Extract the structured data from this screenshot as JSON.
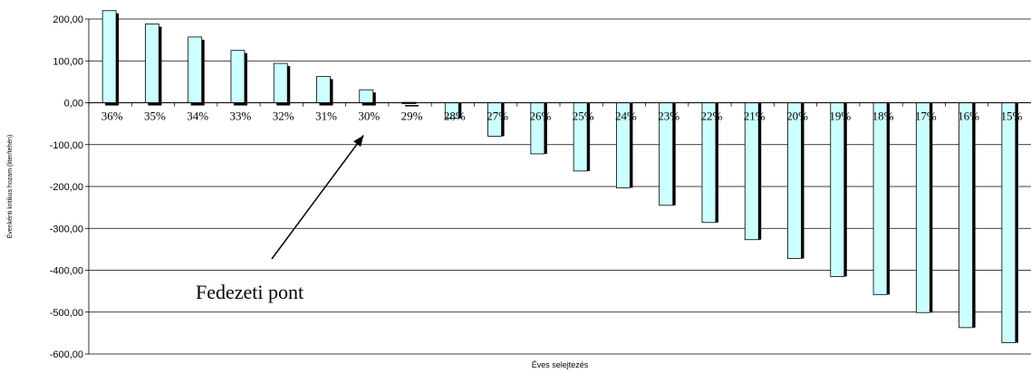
{
  "chart_data": {
    "type": "bar",
    "title": "",
    "xlabel": "Éves selejtezés",
    "ylabel": "Évenkénti kritikus hozam (liter/tehén)",
    "categories": [
      "36%",
      "35%",
      "34%",
      "33%",
      "32%",
      "31%",
      "30%",
      "29%",
      "28%",
      "27%",
      "26%",
      "25%",
      "24%",
      "23%",
      "22%",
      "21%",
      "20%",
      "19%",
      "18%",
      "17%",
      "16%",
      "15%"
    ],
    "values": [
      220,
      188,
      157,
      125,
      94,
      63,
      31,
      1,
      -37,
      -80,
      -122,
      -163,
      -203,
      -245,
      -286,
      -327,
      -372,
      -415,
      -458,
      -501,
      -537,
      -573
    ],
    "ylim": [
      -600,
      200
    ],
    "yticks": [
      200,
      100,
      0,
      -100,
      -200,
      -300,
      -400,
      -500,
      -600
    ],
    "ytick_labels": [
      "200,00",
      "100,00",
      "0,00",
      "-100,00",
      "-200,00",
      "-300,00",
      "-400,00",
      "-500,00",
      "-600,00"
    ],
    "grid": true,
    "legend": "none",
    "annotation": {
      "text": "Fedezeti pont",
      "points_to": "30%"
    },
    "colors": {
      "bar_fill": "#ccffff",
      "bar_shadow": "#000000",
      "grid": "#000000"
    }
  }
}
